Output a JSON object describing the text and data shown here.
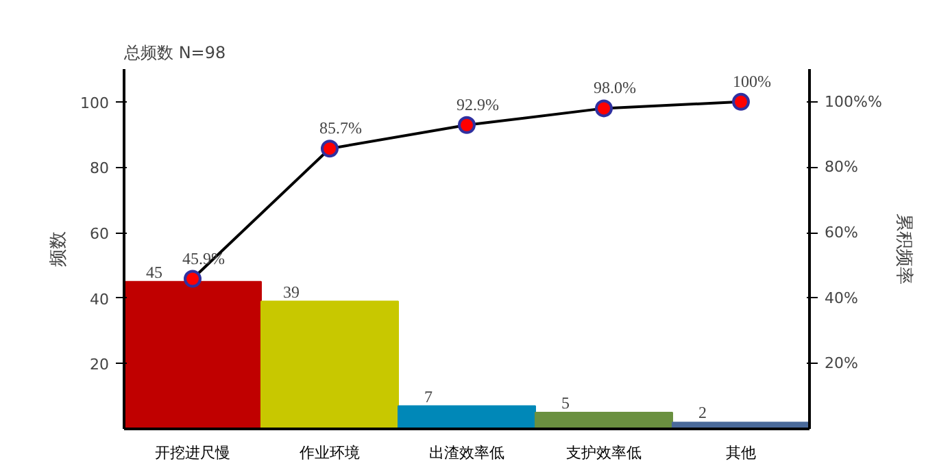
{
  "chart_data": {
    "type": "bar",
    "subtitle": "总频数 N=98",
    "ylabel": "频数",
    "y2label": "累积频率",
    "categories": [
      "开挖进尺慢",
      "作业环境",
      "出渣效率低",
      "支护效率低",
      "其他"
    ],
    "values": [
      45,
      39,
      7,
      5,
      2
    ],
    "colors": [
      "#c00000",
      "#c8c800",
      "#0088b8",
      "#6a9040",
      "#4a6a9a"
    ],
    "data_labels": true,
    "series": [
      {
        "type": "line",
        "color": "#000000",
        "values": [
          45.9,
          85.7,
          92.9,
          98.0,
          100
        ],
        "value_labels": [
          "45.9%",
          "85.7%",
          "92.9%",
          "98.0%",
          "100%"
        ]
      }
    ],
    "marker": "circle",
    "ylim": [
      0,
      110
    ],
    "yticks": [
      20,
      40,
      60,
      80,
      100
    ],
    "y2lim": [
      0,
      110
    ],
    "y2ticks": [
      {
        "value": 20,
        "label": "20%"
      },
      {
        "value": 40,
        "label": "40%"
      },
      {
        "value": 60,
        "label": "60%"
      },
      {
        "value": 80,
        "label": "80%"
      },
      {
        "value": 100,
        "label": "100%%"
      }
    ],
    "grid": false
  }
}
